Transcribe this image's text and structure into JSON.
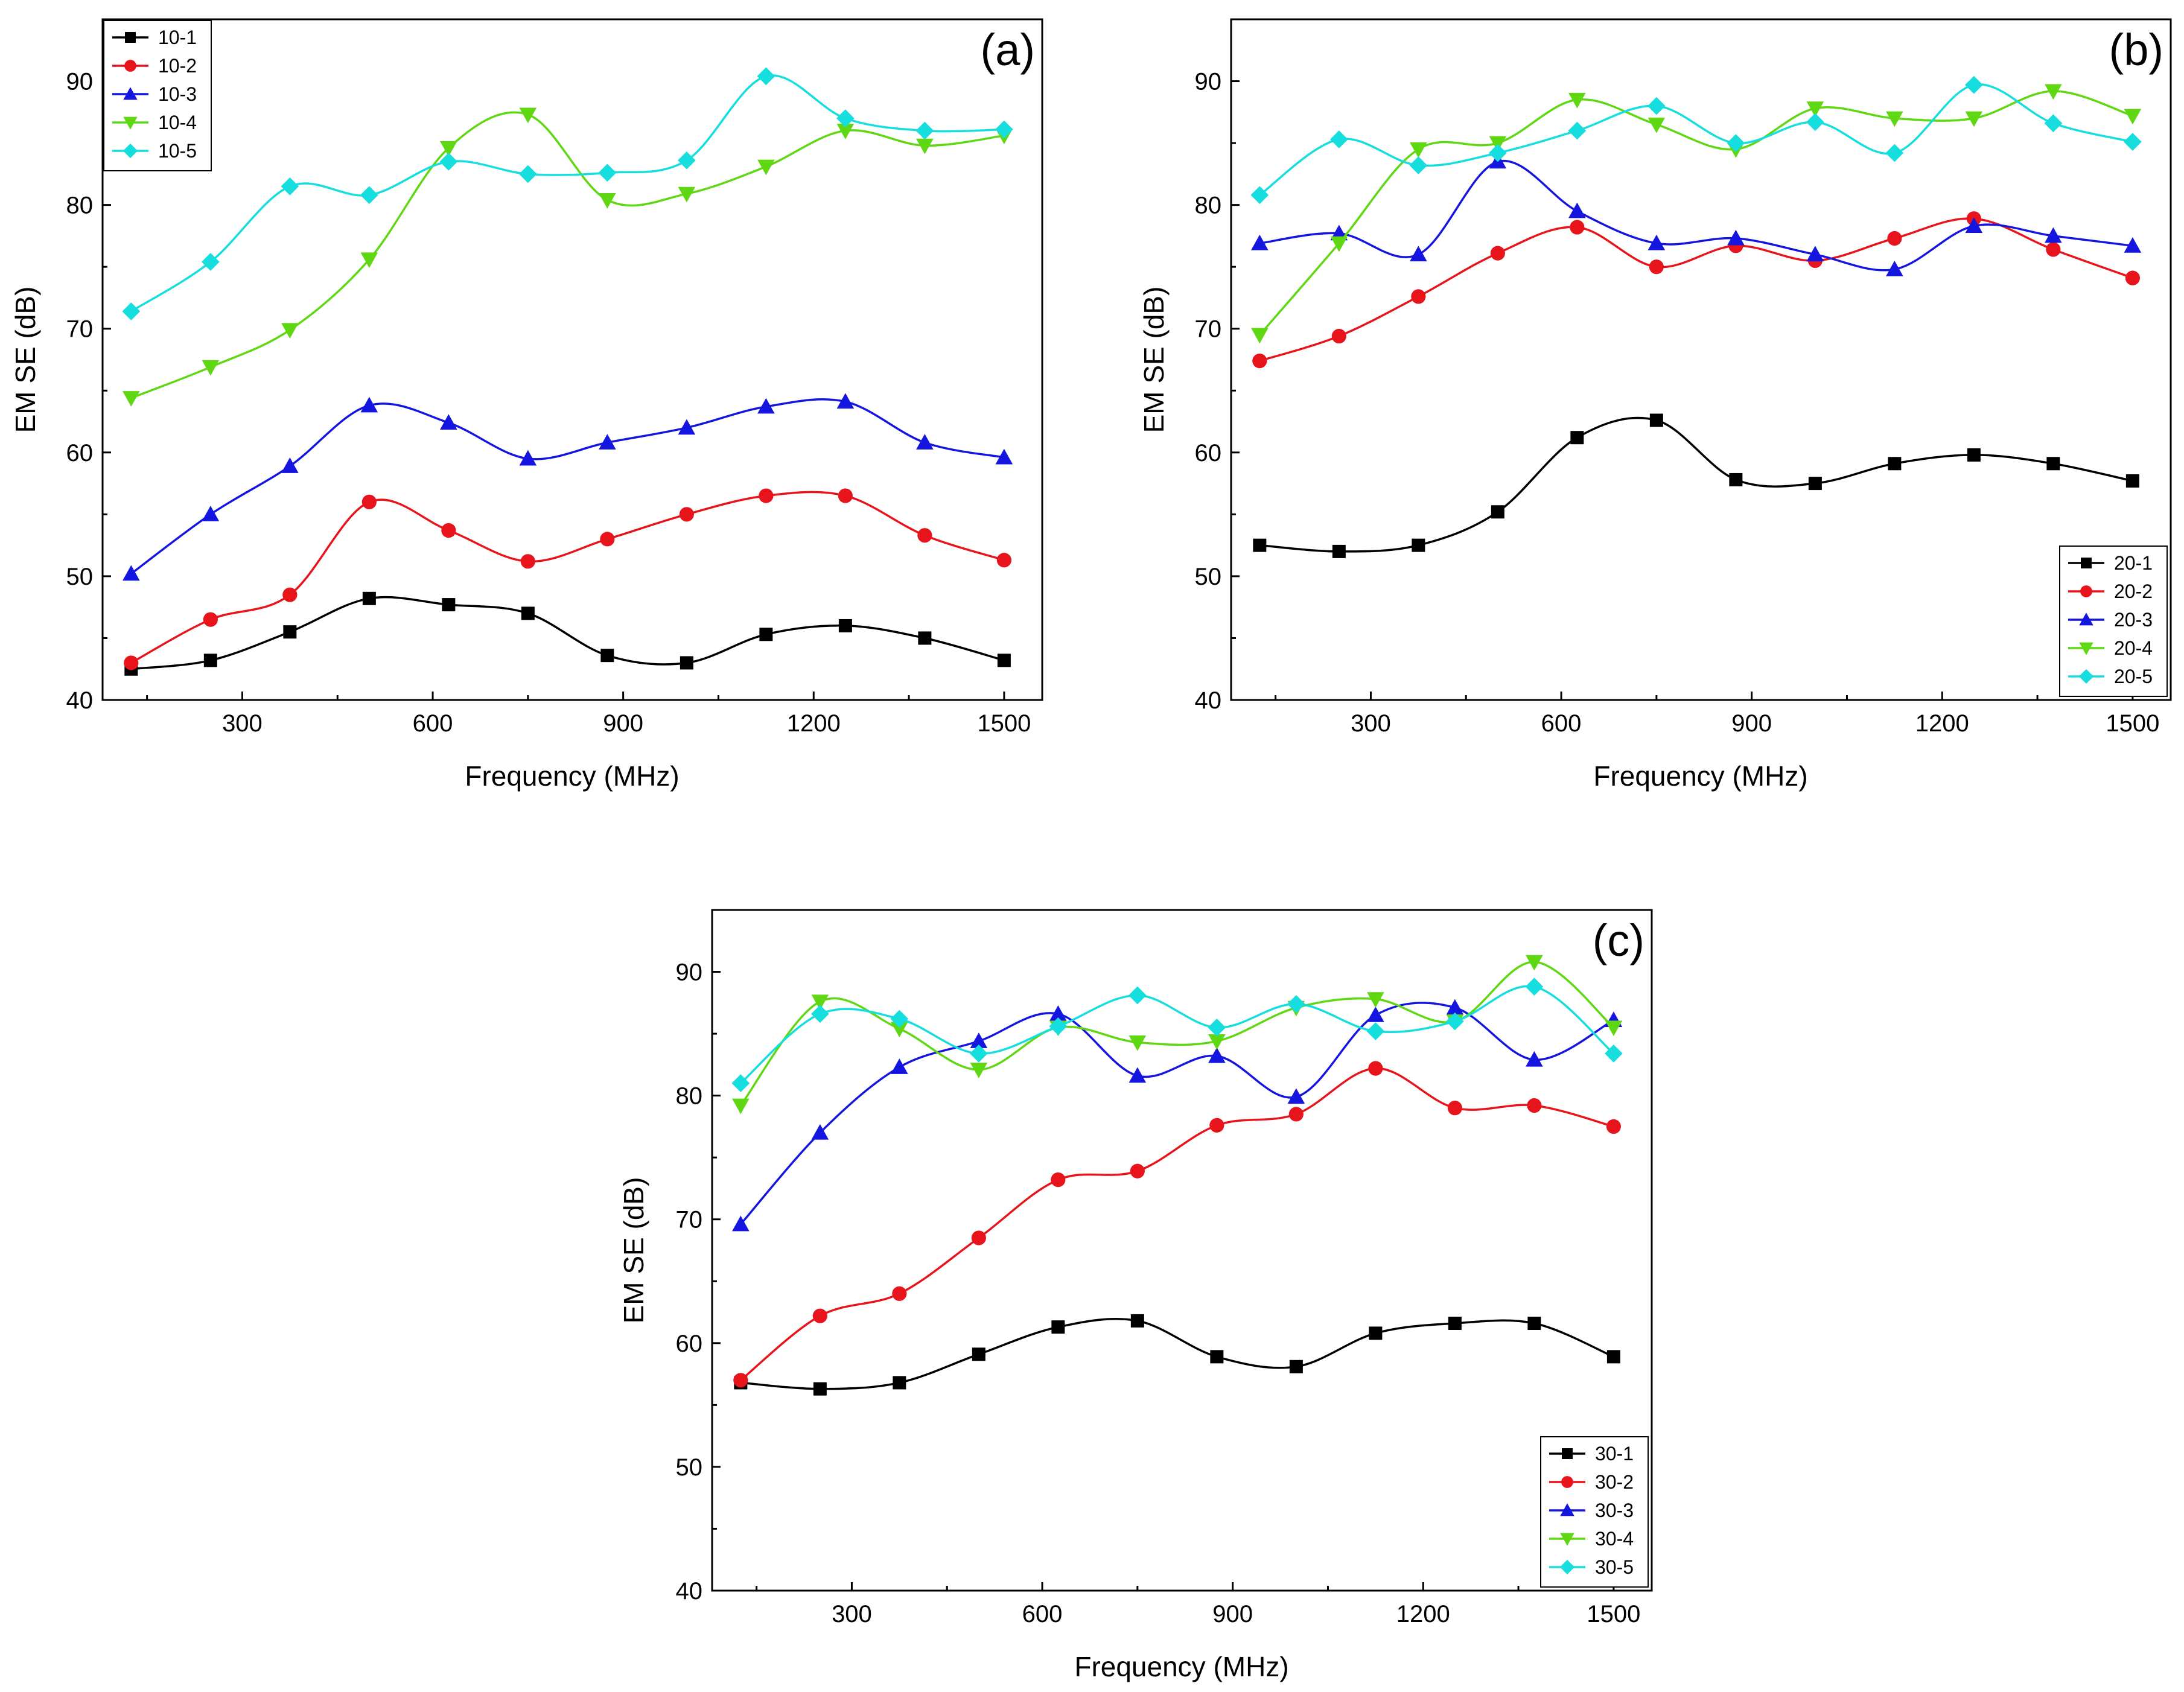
{
  "chart_data": [
    {
      "type": "line",
      "panel_label": "(a)",
      "xlabel": "Frequency (MHz)",
      "ylabel": "EM SE (dB)",
      "xlim": [
        80,
        1560
      ],
      "ylim": [
        40,
        95
      ],
      "xticks": [
        300,
        600,
        900,
        1200,
        1500
      ],
      "yticks": [
        40,
        50,
        60,
        70,
        80,
        90
      ],
      "legend_position": "top-left",
      "x": [
        125,
        250,
        375,
        500,
        625,
        750,
        875,
        1000,
        1125,
        1250,
        1375,
        1500
      ],
      "series": [
        {
          "name": "10-1",
          "color": "#000000",
          "marker": "square",
          "values": [
            42.5,
            43.2,
            45.5,
            48.2,
            47.7,
            47.0,
            43.6,
            43.0,
            45.3,
            46.0,
            45.0,
            43.2
          ]
        },
        {
          "name": "10-2",
          "color": "#e8141c",
          "marker": "circle",
          "values": [
            43.0,
            46.5,
            48.5,
            56.0,
            53.7,
            51.2,
            53.0,
            55.0,
            56.5,
            56.5,
            53.3,
            51.3
          ]
        },
        {
          "name": "10-3",
          "color": "#1515e0",
          "marker": "triangle-up",
          "values": [
            50.2,
            55.0,
            58.9,
            63.8,
            62.4,
            59.5,
            60.8,
            62.0,
            63.7,
            64.1,
            60.8,
            59.6
          ]
        },
        {
          "name": "10-4",
          "color": "#5fd813",
          "marker": "triangle-down",
          "values": [
            64.4,
            66.9,
            69.9,
            75.6,
            84.6,
            87.3,
            80.4,
            80.9,
            83.1,
            86.0,
            84.8,
            85.6
          ]
        },
        {
          "name": "10-5",
          "color": "#16dede",
          "marker": "diamond",
          "values": [
            71.4,
            75.4,
            81.5,
            80.8,
            83.5,
            82.5,
            82.6,
            83.6,
            90.4,
            87.0,
            86.0,
            86.1
          ]
        }
      ]
    },
    {
      "type": "line",
      "panel_label": "(b)",
      "xlabel": "Frequency (MHz)",
      "ylabel": "EM SE (dB)",
      "xlim": [
        80,
        1560
      ],
      "ylim": [
        40,
        95
      ],
      "xticks": [
        300,
        600,
        900,
        1200,
        1500
      ],
      "yticks": [
        40,
        50,
        60,
        70,
        80,
        90
      ],
      "legend_position": "bottom-right",
      "x": [
        125,
        250,
        375,
        500,
        625,
        750,
        875,
        1000,
        1125,
        1250,
        1375,
        1500
      ],
      "series": [
        {
          "name": "20-1",
          "color": "#000000",
          "marker": "square",
          "values": [
            52.5,
            52.0,
            52.5,
            55.2,
            61.2,
            62.6,
            57.8,
            57.5,
            59.1,
            59.8,
            59.1,
            57.7
          ]
        },
        {
          "name": "20-2",
          "color": "#e8141c",
          "marker": "circle",
          "values": [
            67.4,
            69.4,
            72.6,
            76.1,
            78.2,
            75.0,
            76.7,
            75.5,
            77.3,
            78.9,
            76.4,
            74.1
          ]
        },
        {
          "name": "20-3",
          "color": "#1515e0",
          "marker": "triangle-up",
          "values": [
            76.9,
            77.7,
            76.0,
            83.5,
            79.5,
            76.9,
            77.3,
            76.0,
            74.8,
            78.3,
            77.5,
            76.7
          ]
        },
        {
          "name": "20-4",
          "color": "#5fd813",
          "marker": "triangle-down",
          "values": [
            69.5,
            76.9,
            84.5,
            85.0,
            88.5,
            86.5,
            84.5,
            87.8,
            87.0,
            87.0,
            89.2,
            87.2
          ]
        },
        {
          "name": "20-5",
          "color": "#16dede",
          "marker": "diamond",
          "values": [
            80.8,
            85.3,
            83.2,
            84.2,
            86.0,
            88.0,
            85.0,
            86.7,
            84.2,
            89.7,
            86.6,
            85.1
          ]
        }
      ]
    },
    {
      "type": "line",
      "panel_label": "(c)",
      "xlabel": "Frequency (MHz)",
      "ylabel": "EM SE (dB)",
      "xlim": [
        80,
        1560
      ],
      "ylim": [
        40,
        95
      ],
      "xticks": [
        300,
        600,
        900,
        1200,
        1500
      ],
      "yticks": [
        40,
        50,
        60,
        70,
        80,
        90
      ],
      "legend_position": "bottom-right",
      "x": [
        125,
        250,
        375,
        500,
        625,
        750,
        875,
        1000,
        1125,
        1250,
        1375,
        1500
      ],
      "series": [
        {
          "name": "30-1",
          "color": "#000000",
          "marker": "square",
          "values": [
            56.8,
            56.3,
            56.8,
            59.1,
            61.3,
            61.8,
            58.9,
            58.1,
            60.8,
            61.6,
            61.6,
            58.9
          ]
        },
        {
          "name": "30-2",
          "color": "#e8141c",
          "marker": "circle",
          "values": [
            57.0,
            62.2,
            64.0,
            68.5,
            73.2,
            73.9,
            77.6,
            78.5,
            82.2,
            79.0,
            79.2,
            77.5
          ]
        },
        {
          "name": "30-3",
          "color": "#1515e0",
          "marker": "triangle-up",
          "values": [
            69.6,
            77.0,
            82.3,
            84.4,
            86.6,
            81.6,
            83.2,
            79.9,
            86.5,
            87.1,
            82.9,
            86.1
          ]
        },
        {
          "name": "30-4",
          "color": "#5fd813",
          "marker": "triangle-down",
          "values": [
            79.2,
            87.6,
            85.4,
            82.1,
            85.5,
            84.3,
            84.4,
            87.1,
            87.8,
            86.0,
            90.8,
            85.5
          ]
        },
        {
          "name": "30-5",
          "color": "#16dede",
          "marker": "diamond",
          "values": [
            81.0,
            86.6,
            86.2,
            83.4,
            85.6,
            88.1,
            85.5,
            87.4,
            85.2,
            86.0,
            88.8,
            83.4
          ]
        }
      ]
    }
  ]
}
